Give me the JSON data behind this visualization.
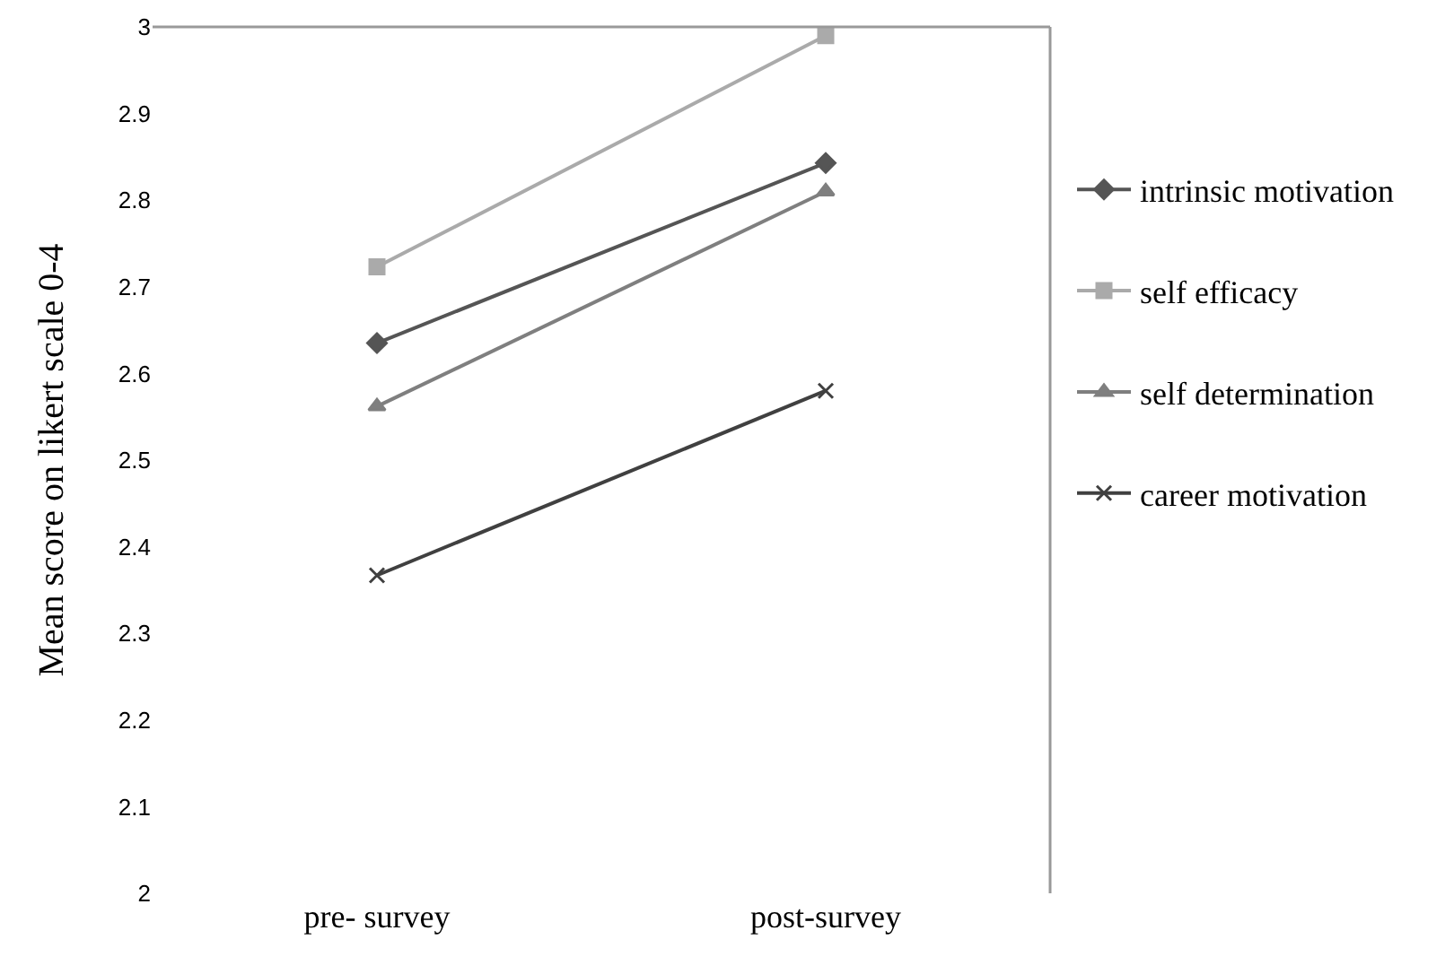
{
  "chart_data": {
    "type": "line",
    "ylabel": "Mean score on likert scale 0-4",
    "categories": [
      "pre- survey",
      "post-survey"
    ],
    "series": [
      {
        "name": "intrinsic motivation",
        "color": "#555555",
        "marker": "diamond",
        "values": [
          2.635,
          2.843
        ]
      },
      {
        "name": "self efficacy",
        "color": "#aaaaaa",
        "marker": "square",
        "values": [
          2.723,
          2.99
        ]
      },
      {
        "name": "self determination",
        "color": "#7f7f7f",
        "marker": "triangle",
        "values": [
          2.562,
          2.81
        ]
      },
      {
        "name": "career motivation",
        "color": "#404040",
        "marker": "cross",
        "values": [
          2.367,
          2.58
        ]
      }
    ],
    "ylim": [
      2,
      3
    ],
    "yticks": [
      2,
      2.1,
      2.2,
      2.3,
      2.4,
      2.5,
      2.6,
      2.7,
      2.8,
      2.9,
      3
    ],
    "grid": false,
    "legend": "right",
    "line_style": "solid"
  }
}
